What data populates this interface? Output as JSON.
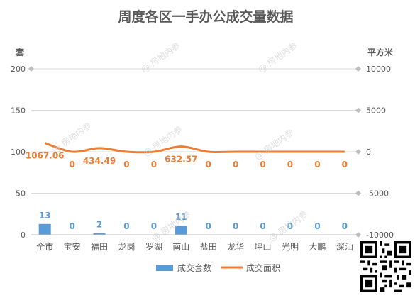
{
  "colors": {
    "bar": "#5B9BD5",
    "line": "#ED7D31",
    "title": "#595959",
    "axis_text": "#595959",
    "grid": "#d9d9d9",
    "bar_label": "#5B9BD5",
    "line_label": "#ED7D31"
  },
  "watermark_text": "@ 房地内参",
  "chart_data": {
    "type": "bar",
    "title": "周度各区一手办公成交量数据",
    "categories": [
      "全市",
      "宝安",
      "福田",
      "龙岗",
      "罗湖",
      "南山",
      "盐田",
      "龙华",
      "坪山",
      "光明",
      "大鹏",
      "深汕"
    ],
    "left_axis": {
      "label": "套",
      "ylim": [
        0,
        200
      ],
      "ticks": [
        0,
        50,
        100,
        150,
        200
      ]
    },
    "right_axis": {
      "label": "平方米",
      "ylim": [
        -10000,
        10000
      ],
      "ticks": [
        -10000,
        -5000,
        0,
        5000,
        10000
      ],
      "tick_labels": [
        "-10000",
        "-5000",
        "0",
        "5000",
        "10000"
      ]
    },
    "series": [
      {
        "name": "成交套数",
        "type": "bar",
        "axis": "left",
        "values": [
          13,
          0,
          2,
          0,
          0,
          11,
          0,
          0,
          0,
          0,
          0,
          0
        ],
        "labels": [
          "13",
          "0",
          "2",
          "0",
          "0",
          "11",
          "0",
          "0",
          "0",
          "0",
          "0",
          "0"
        ]
      },
      {
        "name": "成交面积",
        "type": "line",
        "axis": "right",
        "values": [
          1067.06,
          0,
          434.49,
          0,
          0,
          632.57,
          0,
          0,
          0,
          0,
          0,
          0
        ],
        "labels": [
          "1067.06",
          "0",
          "434.49",
          "0",
          "0",
          "632.57",
          "0",
          "0",
          "0",
          "0",
          "0",
          "0"
        ]
      }
    ],
    "legend_position": "bottom",
    "grid": true
  }
}
